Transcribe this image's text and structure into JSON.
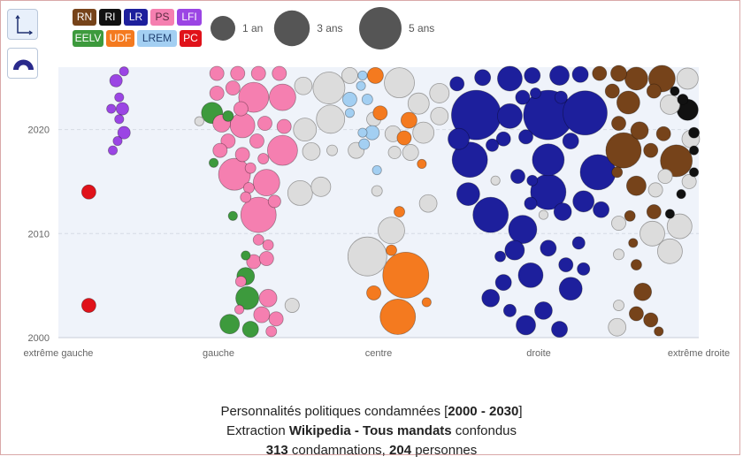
{
  "toolbar": {
    "buttons": [
      {
        "name": "axes-view-icon",
        "active": true
      },
      {
        "name": "hemicycle-view-icon",
        "active": false
      }
    ]
  },
  "legend": {
    "parties": [
      {
        "code": "RN",
        "color": "#76431a",
        "text": "#ffffff"
      },
      {
        "code": "RI",
        "color": "#111111",
        "text": "#ffffff"
      },
      {
        "code": "LR",
        "color": "#1d1f9c",
        "text": "#ffffff"
      },
      {
        "code": "PS",
        "color": "#f57fb0",
        "text": "#5a2a40"
      },
      {
        "code": "LFI",
        "color": "#9b45e4",
        "text": "#ffffff"
      },
      {
        "code": "EELV",
        "color": "#3d9a3d",
        "text": "#ffffff"
      },
      {
        "code": "UDF",
        "color": "#f47a1f",
        "text": "#ffffff"
      },
      {
        "code": "LREM",
        "color": "#a3cff2",
        "text": "#1f3f70"
      },
      {
        "code": "PC",
        "color": "#e0121a",
        "text": "#ffffff"
      }
    ],
    "other_color": "#dcdcdc",
    "sizes": [
      {
        "duration": 1,
        "label": "1 an"
      },
      {
        "duration": 3,
        "label": "3 ans"
      },
      {
        "duration": 5,
        "label": "5 ans"
      }
    ],
    "size_color": "#555555"
  },
  "caption": {
    "line1_pre": "Personnalités politiques condamnées [",
    "line1_bold": "2000 - 2030",
    "line1_post": "]",
    "line2_pre": "Extraction ",
    "line2_bold": "Wikipedia - Tous mandats",
    "line2_post": " confondus",
    "line3_count1": "313",
    "line3_mid": " condamnations, ",
    "line3_count2": "204",
    "line3_post": " personnes"
  },
  "chart_data": {
    "type": "scatter",
    "subtype": "bubble",
    "x_categories": [
      "extrême gauche",
      "gauche",
      "centre",
      "droite",
      "extrême droite"
    ],
    "xlim": [
      0,
      4
    ],
    "ylim": [
      2000,
      2026
    ],
    "yticks": [
      2000,
      2010,
      2020
    ],
    "grid": true,
    "size_encoding": "durée de condamnation (ans)",
    "point_fields": [
      "party",
      "position",
      "year",
      "duration"
    ],
    "points": [
      [
        "PC",
        0.19,
        2014.0,
        0.19
      ],
      [
        "PC",
        0.19,
        2003.1,
        0.19
      ],
      [
        "LFI",
        0.41,
        2025.6,
        0.05
      ],
      [
        "LFI",
        0.36,
        2024.7,
        0.13
      ],
      [
        "LFI",
        0.38,
        2023.1,
        0.05
      ],
      [
        "LFI",
        0.33,
        2022.0,
        0.05
      ],
      [
        "LFI",
        0.4,
        2022.0,
        0.13
      ],
      [
        "LFI",
        0.38,
        2021.0,
        0.05
      ],
      [
        "LFI",
        0.41,
        2019.7,
        0.13
      ],
      [
        "LFI",
        0.37,
        2018.9,
        0.05
      ],
      [
        "LFI",
        0.34,
        2018.0,
        0.05
      ],
      [
        "PS",
        0.99,
        2025.4,
        0.19
      ],
      [
        "PS",
        1.12,
        2025.4,
        0.19
      ],
      [
        "PS",
        1.25,
        2025.4,
        0.19
      ],
      [
        "PS",
        1.38,
        2025.4,
        0.19
      ],
      [
        "PS",
        0.99,
        2023.5,
        0.19
      ],
      [
        "PS",
        1.09,
        2024.0,
        0.19
      ],
      [
        "PS",
        1.22,
        2023.1,
        1.79
      ],
      [
        "PS",
        1.4,
        2023.1,
        1.23
      ],
      [
        "PS",
        1.14,
        2022.0,
        0.19
      ],
      [
        "PS",
        1.29,
        2020.6,
        0.19
      ],
      [
        "PS",
        1.02,
        2020.6,
        0.36
      ],
      [
        "PS",
        1.15,
        2020.4,
        1.0
      ],
      [
        "PS",
        1.41,
        2020.3,
        0.19
      ],
      [
        "PS",
        1.06,
        2018.9,
        0.19
      ],
      [
        "PS",
        1.24,
        2018.9,
        0.19
      ],
      [
        "PS",
        1.4,
        2018.0,
        1.79
      ],
      [
        "PS",
        1.01,
        2018.0,
        0.19
      ],
      [
        "PS",
        1.15,
        2017.6,
        0.19
      ],
      [
        "PS",
        1.28,
        2017.2,
        0.08
      ],
      [
        "PS",
        1.1,
        2015.7,
        2.13
      ],
      [
        "PS",
        1.3,
        2014.9,
        1.23
      ],
      [
        "PS",
        1.2,
        2016.3,
        0.08
      ],
      [
        "PS",
        1.19,
        2014.4,
        0.08
      ],
      [
        "PS",
        1.25,
        2011.8,
        2.92
      ],
      [
        "PS",
        1.17,
        2013.5,
        0.08
      ],
      [
        "PS",
        1.35,
        2013.1,
        0.13
      ],
      [
        "PS",
        1.25,
        2009.4,
        0.08
      ],
      [
        "PS",
        1.31,
        2008.9,
        0.08
      ],
      [
        "PS",
        1.22,
        2007.3,
        0.19
      ],
      [
        "PS",
        1.3,
        2007.6,
        0.19
      ],
      [
        "PS",
        1.14,
        2005.4,
        0.08
      ],
      [
        "PS",
        1.31,
        2003.8,
        0.36
      ],
      [
        "PS",
        1.27,
        2002.2,
        0.27
      ],
      [
        "PS",
        1.36,
        2001.8,
        0.19
      ],
      [
        "PS",
        1.13,
        2002.7,
        0.05
      ],
      [
        "PS",
        1.33,
        2000.6,
        0.08
      ],
      [
        "EELV",
        0.96,
        2021.6,
        0.63
      ],
      [
        "EELV",
        1.06,
        2021.3,
        0.08
      ],
      [
        "EELV",
        0.97,
        2016.8,
        0.05
      ],
      [
        "EELV",
        1.09,
        2011.7,
        0.05
      ],
      [
        "EELV",
        1.17,
        2007.9,
        0.05
      ],
      [
        "EELV",
        1.17,
        2005.9,
        0.36
      ],
      [
        "EELV",
        1.18,
        2003.8,
        0.8
      ],
      [
        "EELV",
        1.07,
        2001.3,
        0.49
      ],
      [
        "EELV",
        1.2,
        2000.8,
        0.27
      ],
      [
        "autre",
        0.88,
        2020.8,
        0.05
      ],
      [
        "autre",
        1.53,
        2024.2,
        0.36
      ],
      [
        "autre",
        1.69,
        2024.0,
        2.13
      ],
      [
        "autre",
        1.54,
        2020.0,
        0.8
      ],
      [
        "autre",
        1.7,
        2021.0,
        1.49
      ],
      [
        "autre",
        1.58,
        2017.9,
        0.36
      ],
      [
        "autre",
        1.51,
        2013.9,
        1.0
      ],
      [
        "autre",
        1.64,
        2014.5,
        0.49
      ],
      [
        "autre",
        1.46,
        2003.1,
        0.19
      ],
      [
        "autre",
        1.71,
        2018.0,
        0.08
      ],
      [
        "autre",
        1.82,
        2025.2,
        0.27
      ],
      [
        "autre",
        2.13,
        2024.5,
        1.79
      ],
      [
        "autre",
        1.93,
        2007.8,
        3.88
      ],
      [
        "autre",
        2.08,
        2010.3,
        1.23
      ],
      [
        "autre",
        2.31,
        2012.9,
        0.36
      ],
      [
        "autre",
        1.99,
        2014.1,
        0.08
      ],
      [
        "autre",
        2.38,
        2023.5,
        0.49
      ],
      [
        "autre",
        2.25,
        2022.5,
        0.63
      ],
      [
        "autre",
        2.38,
        2021.3,
        0.36
      ],
      [
        "autre",
        2.28,
        2019.7,
        0.63
      ],
      [
        "autre",
        1.86,
        2018.0,
        0.27
      ],
      [
        "autre",
        2.1,
        2017.8,
        0.13
      ],
      [
        "autre",
        2.2,
        2017.8,
        0.27
      ],
      [
        "autre",
        1.97,
        2021.0,
        0.19
      ],
      [
        "autre",
        2.09,
        2019.6,
        0.27
      ],
      [
        "UDF",
        1.98,
        2025.2,
        0.27
      ],
      [
        "UDF",
        2.01,
        2021.6,
        0.19
      ],
      [
        "UDF",
        2.19,
        2020.9,
        0.27
      ],
      [
        "UDF",
        2.16,
        2019.2,
        0.19
      ],
      [
        "UDF",
        2.27,
        2016.7,
        0.05
      ],
      [
        "UDF",
        2.13,
        2012.1,
        0.08
      ],
      [
        "UDF",
        2.17,
        2006.0,
        6.4
      ],
      [
        "UDF",
        2.12,
        2002.0,
        2.92
      ],
      [
        "UDF",
        1.97,
        2004.3,
        0.19
      ],
      [
        "UDF",
        2.08,
        2008.4,
        0.08
      ],
      [
        "UDF",
        2.3,
        2003.4,
        0.05
      ],
      [
        "LREM",
        1.9,
        2025.2,
        0.05
      ],
      [
        "LREM",
        1.89,
        2024.2,
        0.05
      ],
      [
        "LREM",
        1.82,
        2022.9,
        0.19
      ],
      [
        "LREM",
        1.93,
        2022.9,
        0.08
      ],
      [
        "LREM",
        1.96,
        2019.7,
        0.19
      ],
      [
        "LREM",
        1.9,
        2019.7,
        0.05
      ],
      [
        "LREM",
        1.99,
        2016.1,
        0.05
      ],
      [
        "LREM",
        1.82,
        2021.6,
        0.05
      ],
      [
        "LREM",
        1.91,
        2018.6,
        0.08
      ],
      [
        "LR",
        2.61,
        2021.4,
        8.0
      ],
      [
        "LR",
        2.57,
        2017.1,
        2.92
      ],
      [
        "LR",
        2.7,
        2011.8,
        2.92
      ],
      [
        "LR",
        3.06,
        2021.4,
        8.0
      ],
      [
        "LR",
        3.29,
        2021.6,
        5.69
      ],
      [
        "LR",
        3.06,
        2017.1,
        2.13
      ],
      [
        "LR",
        3.37,
        2015.9,
        2.92
      ],
      [
        "LR",
        3.06,
        2014.0,
        2.92
      ],
      [
        "LR",
        2.9,
        2010.4,
        1.49
      ],
      [
        "LR",
        2.95,
        2006.0,
        1.0
      ],
      [
        "LR",
        3.2,
        2004.7,
        0.8
      ],
      [
        "LR",
        2.92,
        2001.2,
        0.49
      ],
      [
        "LR",
        2.7,
        2003.8,
        0.36
      ],
      [
        "LR",
        2.49,
        2024.4,
        0.19
      ],
      [
        "LR",
        2.65,
        2025.0,
        0.27
      ],
      [
        "LR",
        2.82,
        2024.9,
        1.0
      ],
      [
        "LR",
        2.96,
        2025.2,
        0.27
      ],
      [
        "LR",
        3.13,
        2025.2,
        0.49
      ],
      [
        "LR",
        3.26,
        2025.3,
        0.27
      ],
      [
        "LR",
        2.9,
        2023.1,
        0.19
      ],
      [
        "LR",
        2.98,
        2023.5,
        0.08
      ],
      [
        "LR",
        2.5,
        2019.1,
        0.63
      ],
      [
        "LR",
        2.82,
        2021.3,
        1.0
      ],
      [
        "LR",
        2.71,
        2018.5,
        0.13
      ],
      [
        "LR",
        2.78,
        2019.1,
        0.19
      ],
      [
        "LR",
        2.92,
        2019.3,
        0.19
      ],
      [
        "LR",
        3.2,
        2018.9,
        0.27
      ],
      [
        "LR",
        3.14,
        2023.1,
        0.13
      ],
      [
        "LR",
        3.15,
        2012.1,
        0.36
      ],
      [
        "LR",
        3.28,
        2013.1,
        0.63
      ],
      [
        "LR",
        3.39,
        2012.3,
        0.27
      ],
      [
        "LR",
        2.56,
        2013.8,
        0.8
      ],
      [
        "LR",
        2.87,
        2015.5,
        0.19
      ],
      [
        "LR",
        2.96,
        2015.1,
        0.08
      ],
      [
        "LR",
        2.85,
        2008.4,
        0.49
      ],
      [
        "LR",
        3.06,
        2008.6,
        0.27
      ],
      [
        "LR",
        3.17,
        2007.0,
        0.19
      ],
      [
        "LR",
        3.03,
        2002.6,
        0.36
      ],
      [
        "LR",
        3.13,
        2000.8,
        0.27
      ],
      [
        "LR",
        2.78,
        2005.3,
        0.27
      ],
      [
        "LR",
        2.82,
        2002.6,
        0.13
      ],
      [
        "LR",
        3.28,
        2006.6,
        0.13
      ],
      [
        "LR",
        2.76,
        2007.8,
        0.08
      ],
      [
        "LR",
        3.25,
        2009.1,
        0.13
      ],
      [
        "LR",
        2.95,
        2012.9,
        0.13
      ],
      [
        "autre",
        2.73,
        2015.1,
        0.05
      ],
      [
        "autre",
        3.03,
        2011.8,
        0.05
      ],
      [
        "RN",
        3.38,
        2025.4,
        0.19
      ],
      [
        "RN",
        3.5,
        2025.4,
        0.27
      ],
      [
        "RN",
        3.61,
        2024.9,
        0.8
      ],
      [
        "RN",
        3.77,
        2024.9,
        1.23
      ],
      [
        "RN",
        3.46,
        2023.7,
        0.19
      ],
      [
        "RN",
        3.56,
        2022.6,
        0.8
      ],
      [
        "RN",
        3.72,
        2023.7,
        0.19
      ],
      [
        "RN",
        3.5,
        2020.6,
        0.19
      ],
      [
        "RN",
        3.63,
        2019.9,
        0.36
      ],
      [
        "RN",
        3.78,
        2019.6,
        0.19
      ],
      [
        "RN",
        3.53,
        2018.0,
        2.92
      ],
      [
        "RN",
        3.86,
        2017.0,
        2.13
      ],
      [
        "RN",
        3.7,
        2018.0,
        0.19
      ],
      [
        "RN",
        3.49,
        2015.9,
        0.08
      ],
      [
        "RN",
        3.61,
        2014.6,
        0.49
      ],
      [
        "RN",
        3.72,
        2012.1,
        0.19
      ],
      [
        "RN",
        3.57,
        2011.7,
        0.08
      ],
      [
        "RN",
        3.65,
        2004.4,
        0.36
      ],
      [
        "RN",
        3.61,
        2002.3,
        0.19
      ],
      [
        "RN",
        3.7,
        2001.7,
        0.19
      ],
      [
        "RN",
        3.61,
        2007.0,
        0.08
      ],
      [
        "RN",
        3.75,
        2000.6,
        0.05
      ],
      [
        "RN",
        3.59,
        2009.1,
        0.05
      ],
      [
        "RI",
        3.85,
        2023.7,
        0.05
      ],
      [
        "RI",
        3.93,
        2021.9,
        0.63
      ],
      [
        "RI",
        3.9,
        2022.9,
        0.08
      ],
      [
        "RI",
        3.97,
        2019.7,
        0.08
      ],
      [
        "RI",
        3.97,
        2018.0,
        0.05
      ],
      [
        "RI",
        3.89,
        2013.8,
        0.05
      ],
      [
        "RI",
        3.82,
        2011.9,
        0.05
      ],
      [
        "RI",
        3.97,
        2015.9,
        0.05
      ],
      [
        "autre",
        3.93,
        2024.9,
        0.63
      ],
      [
        "autre",
        3.82,
        2022.4,
        0.49
      ],
      [
        "autre",
        3.95,
        2019.1,
        0.36
      ],
      [
        "autre",
        3.79,
        2015.5,
        0.19
      ],
      [
        "autre",
        3.73,
        2014.2,
        0.19
      ],
      [
        "autre",
        3.71,
        2010.0,
        1.0
      ],
      [
        "autre",
        3.88,
        2010.7,
        1.0
      ],
      [
        "autre",
        3.82,
        2008.3,
        1.0
      ],
      [
        "autre",
        3.5,
        2008.0,
        0.08
      ],
      [
        "autre",
        3.5,
        2003.1,
        0.08
      ],
      [
        "autre",
        3.49,
        2001.0,
        0.36
      ],
      [
        "autre",
        3.5,
        2011.0,
        0.19
      ],
      [
        "autre",
        3.94,
        2015.0,
        0.19
      ]
    ]
  }
}
